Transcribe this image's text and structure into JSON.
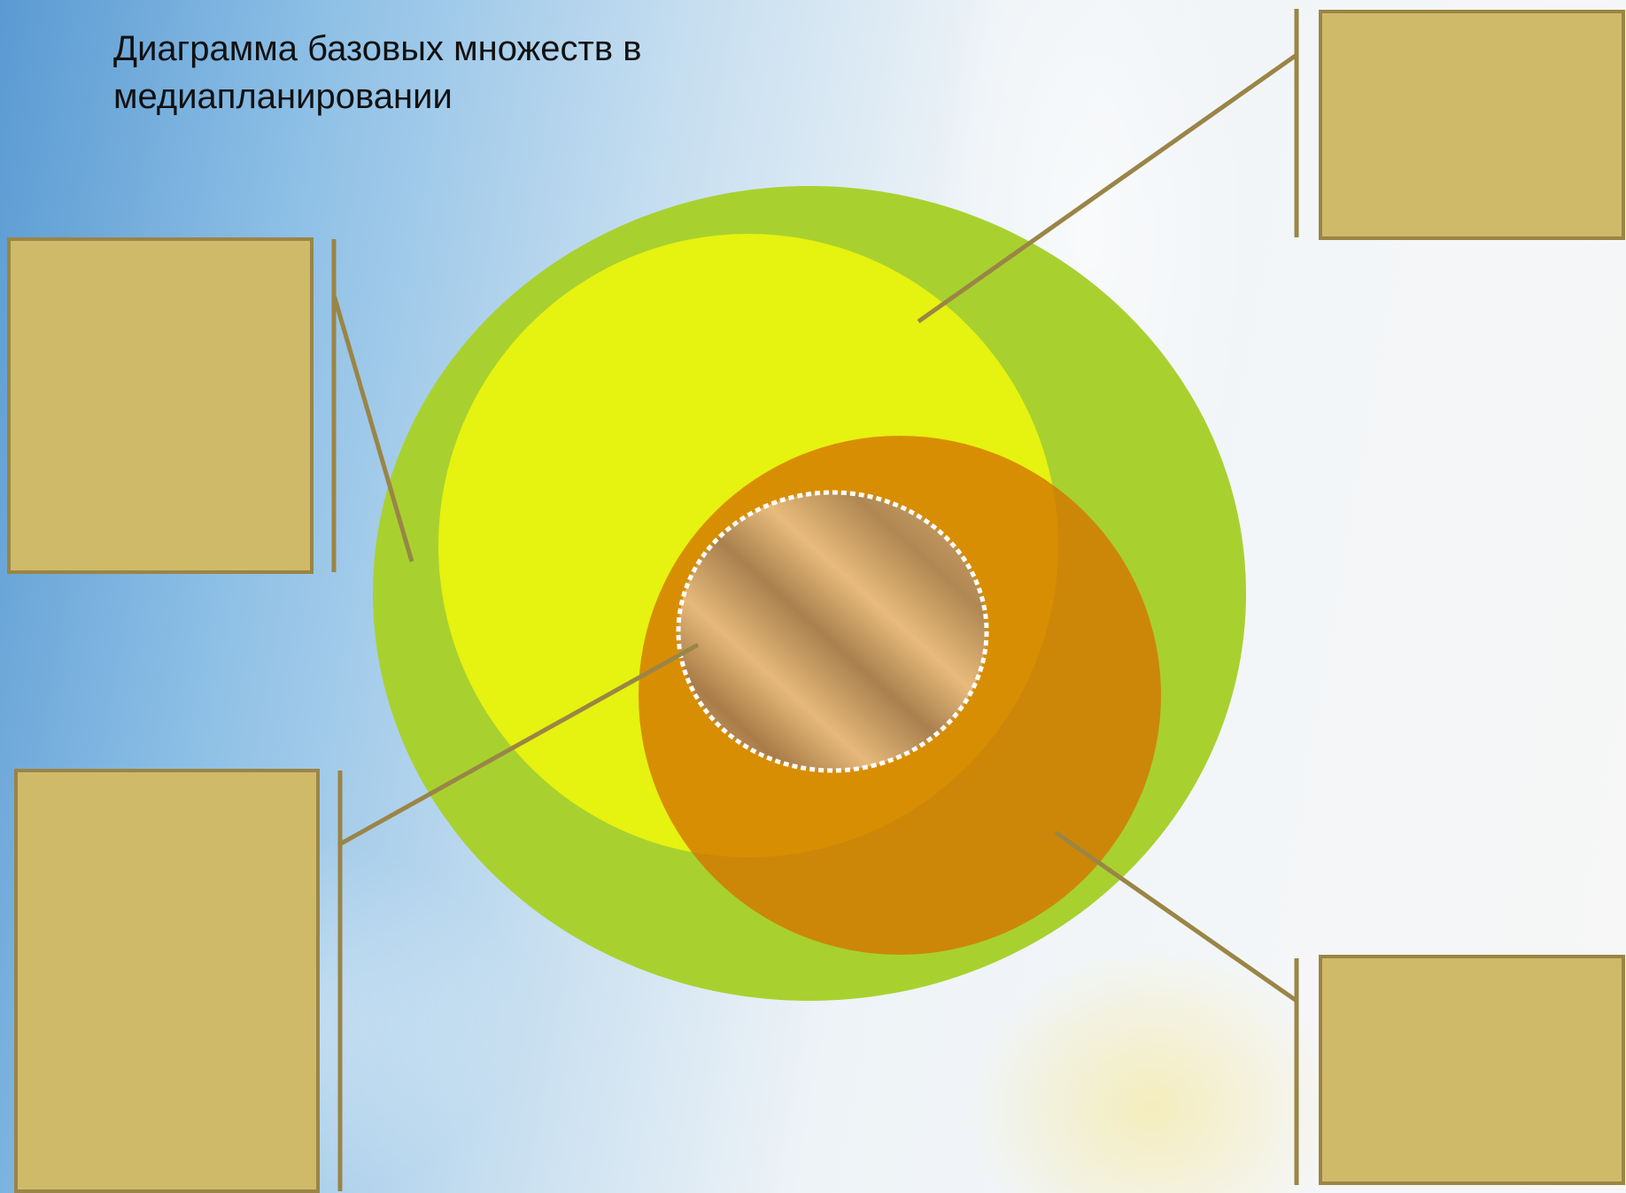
{
  "title": "Диаграмма базовых множеств в медиапланировании",
  "colors": {
    "outer_set": "#a8d12f",
    "inner_set": "#e6f20f",
    "target_set": "#d47400",
    "core_set": "#c9a06a",
    "label_box": "#cfba69",
    "label_box_border": "#9a8546",
    "leader_line": "#9a8546"
  },
  "labels": {
    "top_right": "",
    "left_top": "",
    "left_bottom": "",
    "bottom_right": ""
  }
}
